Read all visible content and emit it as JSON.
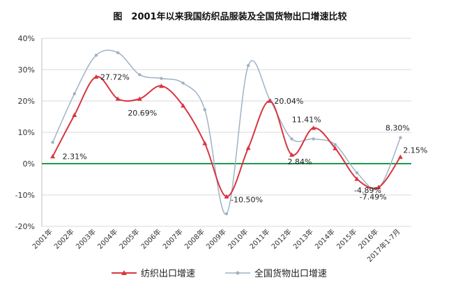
{
  "chart_data": {
    "type": "line",
    "title": "图　2001年以来我国纺织品服装及全国货物出口增速比较",
    "categories": [
      "2001年",
      "2002年",
      "2003年",
      "2004年",
      "2005年",
      "2006年",
      "2007年",
      "2008年",
      "2009年",
      "2010年",
      "2011年",
      "2012年",
      "2013年",
      "2014年",
      "2015年",
      "2016年",
      "2017年1-7月"
    ],
    "ylim": [
      -20,
      40
    ],
    "yticks": [
      "-20%",
      "-10%",
      "0%",
      "10%",
      "20%",
      "30%",
      "40%"
    ],
    "ytick_values": [
      -20,
      -10,
      0,
      10,
      20,
      30,
      40
    ],
    "grid": "horizontal",
    "zero_line_color": "#1a9a4a",
    "legend_position": "bottom",
    "series": [
      {
        "name": "纺织出口增速",
        "color": "#d9343f",
        "marker": "triangle",
        "values": [
          2.31,
          15.5,
          27.72,
          20.7,
          20.69,
          24.8,
          18.5,
          6.5,
          -10.5,
          5.0,
          20.04,
          2.84,
          11.41,
          4.9,
          -4.89,
          -7.49,
          2.15
        ]
      },
      {
        "name": "全国货物出口增速",
        "color": "#9fb2c6",
        "marker": "dot",
        "values": [
          6.8,
          22.3,
          34.6,
          35.4,
          28.4,
          27.2,
          25.7,
          17.2,
          -16.0,
          31.3,
          20.3,
          7.9,
          7.9,
          6.1,
          -2.9,
          -7.7,
          8.3
        ]
      }
    ],
    "data_labels": [
      {
        "text": "2.31%",
        "series": 0,
        "index": 0
      },
      {
        "text": "27.72%",
        "series": 0,
        "index": 2
      },
      {
        "text": "20.69%",
        "series": 0,
        "index": 4
      },
      {
        "text": "-10.50%",
        "series": 0,
        "index": 8
      },
      {
        "text": "20.04%",
        "series": 0,
        "index": 10
      },
      {
        "text": "2.84%",
        "series": 0,
        "index": 11
      },
      {
        "text": "11.41%",
        "series": 0,
        "index": 12
      },
      {
        "text": "-4.89%",
        "series": 0,
        "index": 14
      },
      {
        "text": "-7.49%",
        "series": 0,
        "index": 15
      },
      {
        "text": "8.30%",
        "series": 1,
        "index": 16
      },
      {
        "text": "2.15%",
        "series": 0,
        "index": 16
      }
    ]
  }
}
